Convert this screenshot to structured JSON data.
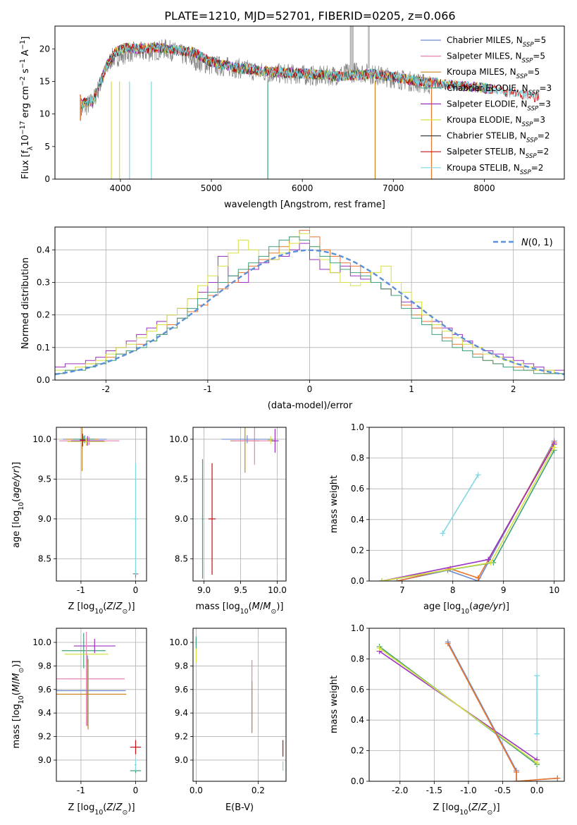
{
  "chart_data": [
    {
      "type": "line",
      "title": "PLATE=1210, MJD=52701, FIBERID=0205, z=0.066",
      "xlabel": "wavelength [Angstrom, rest frame]",
      "ylabel": "Flux [f_λ 10^-17 erg cm^-2 s^-1 A^-1]",
      "xlim": [
        3280,
        8880
      ],
      "ylim": [
        0,
        23.5
      ],
      "xticks": [
        4000,
        5000,
        6000,
        7000,
        8000
      ],
      "yticks": [
        0,
        5,
        10,
        15,
        20
      ],
      "grid": false,
      "legend": "top-right",
      "data_series": {
        "name": "data",
        "color": "#808080",
        "x": [
          3560,
          3700,
          3900,
          4000,
          4100,
          4300,
          4500,
          4700,
          4900,
          5000,
          5200,
          5400,
          5600,
          5800,
          6000,
          6200,
          6400,
          6600,
          6800,
          7000,
          7200,
          7400
        ],
        "y": [
          10.5,
          12,
          18.5,
          19,
          19.5,
          19.5,
          20,
          19,
          17.8,
          17.5,
          17.2,
          16.8,
          16.3,
          16.2,
          16,
          15.8,
          16,
          16.5,
          16,
          15.5,
          15,
          14.5
        ]
      },
      "model_curve": {
        "x": [
          3560,
          3700,
          3850,
          3950,
          4050,
          4200,
          4400,
          4600,
          4800,
          5000,
          5300,
          5600,
          6000,
          6400,
          6800,
          7200,
          7600,
          8000,
          8400,
          8600
        ],
        "y": [
          11.5,
          12,
          17.5,
          19.5,
          20.2,
          20,
          20.2,
          19.8,
          19.5,
          18,
          17,
          16.5,
          16.2,
          15.8,
          16.2,
          15.2,
          14.5,
          14,
          13,
          12.5
        ]
      },
      "series": [
        {
          "name": "Chabrier MILES",
          "nssp": "5",
          "color": "#6d8cd0"
        },
        {
          "name": "Salpeter MILES",
          "nssp": "5",
          "color": "#e882b5"
        },
        {
          "name": "Kroupa MILES",
          "nssp": "5",
          "color": "#c8861c"
        },
        {
          "name": "Chabrier ELODIE",
          "nssp": "3",
          "color": "#3fa07a"
        },
        {
          "name": "Salpeter ELODIE",
          "nssp": "3",
          "color": "#9a30c0"
        },
        {
          "name": "Kroupa ELODIE",
          "nssp": "3",
          "color": "#d6e040"
        },
        {
          "name": "Chabrier STELIB",
          "nssp": "2",
          "color": "#404040"
        },
        {
          "name": "Salpeter STELIB",
          "nssp": "2",
          "color": "#c01010"
        },
        {
          "name": "Kroupa STELIB",
          "nssp": "2",
          "color": "#7fd8e0"
        }
      ]
    },
    {
      "type": "line",
      "xlabel": "(data-model)/error",
      "ylabel": "Normed distribution",
      "xlim": [
        -2.5,
        2.5
      ],
      "ylim": [
        0,
        0.47
      ],
      "xticks": [
        -2,
        -1,
        0,
        1,
        2
      ],
      "yticks": [
        0.0,
        0.1,
        0.2,
        0.3,
        0.4
      ],
      "grid": true,
      "legend": "top-right",
      "legend_label": "N(0,1)",
      "reference_color": "#5b8fd8",
      "histogram_edges_start": -2.5,
      "histogram_bin_width": 0.1,
      "histograms": [
        {
          "color": "#9a30c0",
          "values": [
            0.04,
            0.05,
            0.05,
            0.06,
            0.07,
            0.09,
            0.1,
            0.12,
            0.14,
            0.16,
            0.18,
            0.2,
            0.22,
            0.25,
            0.27,
            0.3,
            0.38,
            0.32,
            0.3,
            0.34,
            0.36,
            0.37,
            0.38,
            0.4,
            0.42,
            0.37,
            0.34,
            0.33,
            0.35,
            0.32,
            0.31,
            0.3,
            0.28,
            0.26,
            0.24,
            0.22,
            0.2,
            0.18,
            0.16,
            0.14,
            0.12,
            0.1,
            0.09,
            0.08,
            0.07,
            0.06,
            0.05,
            0.04,
            0.03,
            0.03
          ]
        },
        {
          "color": "#e8762e",
          "values": [
            0.02,
            0.03,
            0.04,
            0.05,
            0.05,
            0.07,
            0.08,
            0.09,
            0.11,
            0.12,
            0.14,
            0.17,
            0.19,
            0.21,
            0.23,
            0.26,
            0.28,
            0.3,
            0.33,
            0.35,
            0.37,
            0.39,
            0.41,
            0.44,
            0.46,
            0.44,
            0.4,
            0.38,
            0.36,
            0.35,
            0.33,
            0.3,
            0.28,
            0.26,
            0.23,
            0.2,
            0.18,
            0.16,
            0.13,
            0.11,
            0.09,
            0.08,
            0.06,
            0.05,
            0.04,
            0.04,
            0.03,
            0.03,
            0.02,
            0.02
          ]
        },
        {
          "color": "#d6e040",
          "values": [
            0.03,
            0.03,
            0.04,
            0.05,
            0.06,
            0.08,
            0.1,
            0.11,
            0.13,
            0.15,
            0.17,
            0.2,
            0.22,
            0.25,
            0.29,
            0.32,
            0.35,
            0.39,
            0.43,
            0.4,
            0.38,
            0.37,
            0.39,
            0.42,
            0.45,
            0.41,
            0.37,
            0.33,
            0.3,
            0.29,
            0.3,
            0.33,
            0.35,
            0.3,
            0.27,
            0.24,
            0.2,
            0.17,
            0.15,
            0.13,
            0.11,
            0.1,
            0.08,
            0.07,
            0.06,
            0.05,
            0.04,
            0.03,
            0.03,
            0.02
          ]
        },
        {
          "color": "#3fa07a",
          "values": [
            0.02,
            0.03,
            0.03,
            0.04,
            0.05,
            0.06,
            0.08,
            0.09,
            0.1,
            0.12,
            0.14,
            0.16,
            0.19,
            0.22,
            0.25,
            0.27,
            0.3,
            0.32,
            0.34,
            0.36,
            0.38,
            0.41,
            0.43,
            0.44,
            0.43,
            0.41,
            0.38,
            0.36,
            0.34,
            0.33,
            0.32,
            0.3,
            0.28,
            0.26,
            0.22,
            0.19,
            0.17,
            0.14,
            0.12,
            0.1,
            0.09,
            0.07,
            0.06,
            0.05,
            0.04,
            0.03,
            0.03,
            0.02,
            0.02,
            0.02
          ]
        }
      ]
    },
    {
      "type": "scatter",
      "xlabel": "Z [log10(Z/Z_sun)]",
      "ylabel": "age [log10(age/yr)]",
      "xlim": [
        -1.45,
        0.2
      ],
      "ylim": [
        8.22,
        10.15
      ],
      "xticks": [
        -1,
        0
      ],
      "yticks": [
        8.5,
        9.0,
        9.5,
        10.0
      ],
      "grid": true,
      "points": [
        {
          "color": "#6d8cd0",
          "x": -0.93,
          "y": 10.0,
          "xerr": 0.4,
          "yerr": 0.05
        },
        {
          "color": "#e882b5",
          "x": -0.85,
          "y": 9.98,
          "xerr": 0.55,
          "yerr": 0.05
        },
        {
          "color": "#c8861c",
          "x": -0.98,
          "y": 10.0,
          "xerr": 0.3,
          "yerr": 0.4
        },
        {
          "color": "#3fa07a",
          "x": -0.95,
          "y": 10.0,
          "xerr": 0.2,
          "yerr": 0.04
        },
        {
          "color": "#9a30c0",
          "x": -0.88,
          "y": 9.98,
          "xerr": 0.3,
          "yerr": 0.06
        },
        {
          "color": "#d6e040",
          "x": -0.9,
          "y": 9.97,
          "xerr": 0.35,
          "yerr": 0.05
        },
        {
          "color": "#808080",
          "x": 0.0,
          "y": 8.31,
          "xerr": 0.05,
          "yerr": 0.05
        },
        {
          "color": "#c01010",
          "x": -0.97,
          "y": 9.99,
          "xerr": 0.05,
          "yerr": 0.08
        },
        {
          "color": "#7fd8e0",
          "x": 0.0,
          "y": 9.0,
          "xerr": 0.05,
          "yerr": 0.7
        }
      ]
    },
    {
      "type": "scatter",
      "xlabel": "mass [log10(M/M_sun)]",
      "ylabel": "",
      "xlim": [
        8.85,
        10.12
      ],
      "ylim": [
        8.22,
        10.15
      ],
      "xticks": [
        9.0,
        9.5,
        10.0
      ],
      "yticks": [
        8.5,
        9.0,
        9.5,
        10.0
      ],
      "grid": true,
      "points": [
        {
          "color": "#3fa07a",
          "x": 8.98,
          "y": 9.0,
          "xerr": 0.01,
          "yerr": 0.75
        },
        {
          "color": "#c01010",
          "x": 9.11,
          "y": 9.0,
          "xerr": 0.05,
          "yerr": 0.7
        },
        {
          "color": "#c8861c",
          "x": 9.56,
          "y": 9.98,
          "xerr": 0.2,
          "yerr": 0.4
        },
        {
          "color": "#e882b5",
          "x": 9.69,
          "y": 9.98,
          "xerr": 0.3,
          "yerr": 0.3
        },
        {
          "color": "#6d8cd0",
          "x": 9.59,
          "y": 10.0,
          "xerr": 0.35,
          "yerr": 0.05
        },
        {
          "color": "#9a30c0",
          "x": 9.97,
          "y": 9.98,
          "xerr": 0.05,
          "yerr": 0.15
        },
        {
          "color": "#d6e040",
          "x": 9.91,
          "y": 9.99,
          "xerr": 0.04,
          "yerr": 0.05
        }
      ]
    },
    {
      "type": "line",
      "xlabel": "age [log10(age/yr)]",
      "ylabel": "mass weight",
      "xlim": [
        6.35,
        10.2
      ],
      "ylim": [
        0,
        1.0
      ],
      "xticks": [
        7,
        8,
        9,
        10
      ],
      "yticks": [
        0.0,
        0.2,
        0.4,
        0.6,
        0.8,
        1.0
      ],
      "grid": true,
      "series": [
        {
          "color": "#6d8cd0",
          "x": [
            6.9,
            7.9,
            8.5,
            10.0
          ],
          "y": [
            0.0,
            0.07,
            0.0,
            0.91
          ]
        },
        {
          "color": "#e8762e",
          "x": [
            6.9,
            7.95,
            8.5,
            10.0
          ],
          "y": [
            0.0,
            0.08,
            0.02,
            0.9
          ]
        },
        {
          "color": "#3fa07a",
          "x": [
            6.6,
            8.8,
            10.0
          ],
          "y": [
            0.0,
            0.12,
            0.85
          ]
        },
        {
          "color": "#9a30c0",
          "x": [
            6.6,
            8.7,
            10.0
          ],
          "y": [
            0.0,
            0.14,
            0.89
          ]
        },
        {
          "color": "#d6e040",
          "x": [
            6.6,
            8.75,
            10.0
          ],
          "y": [
            0.0,
            0.12,
            0.87
          ]
        },
        {
          "color": "#7fd8e0",
          "x": [
            7.8,
            8.5
          ],
          "y": [
            0.31,
            0.69
          ]
        }
      ]
    },
    {
      "type": "scatter",
      "xlabel": "Z [log10(Z/Z_sun)]",
      "ylabel": "mass [log10(M/M_sun)]",
      "xlim": [
        -1.45,
        0.2
      ],
      "ylim": [
        8.82,
        10.12
      ],
      "xticks": [
        -1,
        0
      ],
      "yticks": [
        9.0,
        9.2,
        9.4,
        9.6,
        9.8,
        10.0
      ],
      "grid": true,
      "points": [
        {
          "color": "#3fa07a",
          "x": -0.95,
          "y": 9.93,
          "xerr": 0.4,
          "yerr": 0.15
        },
        {
          "color": "#9a30c0",
          "x": -0.75,
          "y": 9.97,
          "xerr": 0.38,
          "yerr": 0.06
        },
        {
          "color": "#d6e040",
          "x": -0.9,
          "y": 9.9,
          "xerr": 0.4,
          "yerr": 0.08
        },
        {
          "color": "#e882b5",
          "x": -0.9,
          "y": 9.69,
          "xerr": 0.7,
          "yerr": 0.4
        },
        {
          "color": "#6d8cd0",
          "x": -0.88,
          "y": 9.59,
          "xerr": 0.7,
          "yerr": 0.3
        },
        {
          "color": "#c8861c",
          "x": -0.87,
          "y": 9.56,
          "xerr": 0.7,
          "yerr": 0.3
        },
        {
          "color": "#c01010",
          "x": 0.0,
          "y": 9.11,
          "xerr": 0.1,
          "yerr": 0.06
        },
        {
          "color": "#3fa07a",
          "x": 0.0,
          "y": 8.91,
          "xerr": 0.1,
          "yerr": 0.02
        },
        {
          "color": "#7fd8e0",
          "x": 0.0,
          "y": 8.96,
          "xerr": 0.02,
          "yerr": 0.05
        }
      ]
    },
    {
      "type": "scatter",
      "xlabel": "E(B-V)",
      "ylabel": "",
      "xlim": [
        -0.01,
        0.29
      ],
      "ylim": [
        8.82,
        10.12
      ],
      "xticks": [
        0.0,
        0.2
      ],
      "yticks": [
        9.0,
        9.2,
        9.4,
        9.6,
        9.8,
        10.0
      ],
      "grid": true,
      "points": [
        {
          "color": "#d6e040",
          "x": 0.0,
          "y": 9.93,
          "xerr": 0.0,
          "yerr": 0.1
        },
        {
          "color": "#3fa07a",
          "x": 0.0,
          "y": 10.0,
          "xerr": 0.0,
          "yerr": 0.05
        },
        {
          "color": "#e882b5",
          "x": 0.18,
          "y": 9.55,
          "xerr": 0.0,
          "yerr": 0.3
        },
        {
          "color": "#c8861c",
          "x": 0.18,
          "y": 9.45,
          "xerr": 0.0,
          "yerr": 0.22
        },
        {
          "color": "#c01010",
          "x": 0.28,
          "y": 9.1,
          "xerr": 0.0,
          "yerr": 0.07
        },
        {
          "color": "#7fd8e0",
          "x": 0.28,
          "y": 8.95,
          "xerr": 0.0,
          "yerr": 0.04
        }
      ]
    },
    {
      "type": "line",
      "xlabel": "Z [log10(Z/Z_sun)]",
      "ylabel": "mass weight",
      "xlim": [
        -2.45,
        0.4
      ],
      "ylim": [
        0,
        1.0
      ],
      "xticks": [
        -2.0,
        -1.5,
        -1.0,
        -0.5,
        0.0
      ],
      "yticks": [
        0.0,
        0.2,
        0.4,
        0.6,
        0.8,
        1.0
      ],
      "grid": true,
      "series": [
        {
          "color": "#3fa07a",
          "x": [
            -2.3,
            0.0
          ],
          "y": [
            0.88,
            0.11
          ]
        },
        {
          "color": "#9a30c0",
          "x": [
            -2.3,
            0.0
          ],
          "y": [
            0.85,
            0.14
          ]
        },
        {
          "color": "#d6e040",
          "x": [
            -2.3,
            0.0
          ],
          "y": [
            0.87,
            0.12
          ]
        },
        {
          "color": "#6d8cd0",
          "x": [
            -1.3,
            -0.3,
            -0.3,
            0.3
          ],
          "y": [
            0.91,
            0.07,
            0.0,
            0.02
          ]
        },
        {
          "color": "#e8762e",
          "x": [
            -1.3,
            -0.3,
            -0.3,
            0.3
          ],
          "y": [
            0.9,
            0.06,
            0.0,
            0.02
          ]
        },
        {
          "color": "#7fd8e0",
          "x": [
            0.0,
            0.0
          ],
          "y": [
            0.31,
            0.69
          ]
        }
      ]
    }
  ]
}
